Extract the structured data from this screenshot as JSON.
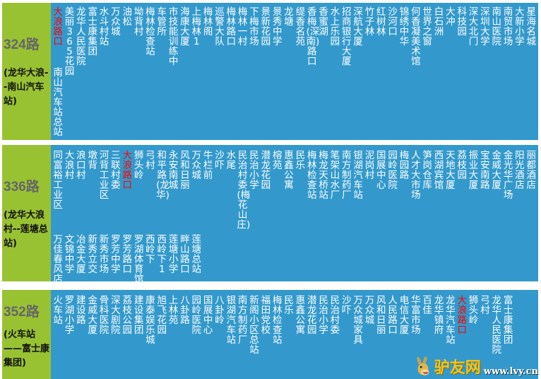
{
  "colors": {
    "side": "#99c233",
    "stops_bg": "#3399cc",
    "highlight": "#ff0000"
  },
  "routes": [
    {
      "number": "324路",
      "desc": "(龙华大浪--南山汽车站)",
      "highlight": "大浪路口",
      "lines": [
        [
          "大浪路口",
          "美丽365花园",
          "龙华人民医院",
          "富士康集团",
          "水斗村站",
          "万众城",
          "油松",
          "坳背村",
          "梅林检查站",
          "车管所",
          "市技能训练中",
          "海康大厦",
          "上梅林1",
          "梅林阁",
          "巡警大队",
          "梅林路口",
          "梅林一村",
          "下梅市场",
          "景新花园",
          "景秀中学",
          "龙塘",
          "缇香名苑",
          "香梅(深南)路口",
          "香蜜湖",
          "水上乐园",
          "招商银行大厦",
          "深航大厦",
          "竹子林",
          "红树林",
          "沙河口",
          "锦绣中华",
          "何香凝美术馆",
          "世界之窗",
          "白石洲",
          "大冲",
          "科技园",
          "深大北门",
          "深圳大学",
          "南山医院",
          "南贸市场",
          "大新小学",
          "星海名城"
        ],
        [
          "南山汽车站总站"
        ]
      ]
    },
    {
      "number": "336路",
      "desc": "(龙华大浪村--莲塘总站)",
      "highlight": "大浪路口",
      "lines": [
        [
          "同富裕工业区",
          "大浪村",
          "浪口村",
          "墩背",
          "河背工业区",
          "三联村委",
          "大浪路口",
          "狮头岭",
          "弓村",
          "和平路(龙华)",
          "永安南城",
          "风和日丽",
          "万众城",
          "牛栏前",
          "沙吓",
          "水尾",
          "民治村委(梅花山庄)",
          "民治小学",
          "潜龙花园",
          "榕苑",
          "惠鑫公寓",
          "民乐",
          "梅林检查站",
          "梅龙天桥站",
          "笔架山水厂",
          "南方制药厂",
          "银湖汽车站",
          "泥岗村",
          "国展中心",
          "园岭医院",
          "梅园路",
          "人才大市场",
          "笋岗仓库",
          "西湖宾馆",
          "天地大厦",
          "荔枝园",
          "振业大厦",
          "宝安南路",
          "金威大厦",
          "金光华广场",
          "阳光酒店",
          "丽都酒店"
        ],
        [
          "万佳春风店",
          "文锦中学",
          "冶金大厦",
          "新秀立交",
          "新秀市场",
          "罗芳中学",
          "罗芳路口",
          "罗湖体育馆",
          "西岭下",
          "西岭下1",
          "莲塘小学",
          "畔山路口",
          "莲塘总站"
        ]
      ]
    },
    {
      "number": "352路",
      "desc": "(火车站——富士康集团)",
      "highlight": "大浪路口",
      "lines": [
        [
          "火车站",
          "罗湖小学",
          "建设路",
          "金威大厦",
          "骨科医院",
          "深大剧院",
          "荔枝公园",
          "建设集团",
          "康泰娱乐城",
          "旭飞花园",
          "上林苑",
          "八卦路",
          "园岭医院",
          "国展中心",
          "八卦岭",
          "银湖汽车站",
          "南方制药厂",
          "新阁小区总站",
          "福田党校",
          "梅林检查站",
          "民乐",
          "惠鑫公寓",
          "潜龙花园",
          "民治小学",
          "民治村委",
          "沙吓",
          "万众城家具",
          "万众城",
          "风和日丽",
          "人民路口",
          "电信大厦",
          "华富市场",
          "百佳",
          "龙华镇府",
          "龙华汽车站",
          "大浪路口",
          "狮头岭",
          "弓村",
          "龙华人民医院",
          "富士康集团"
        ]
      ]
    }
  ],
  "logo": {
    "text": "驴友网",
    "url": "www.lvy.cn",
    "icon": "donkey-mascot-icon"
  }
}
